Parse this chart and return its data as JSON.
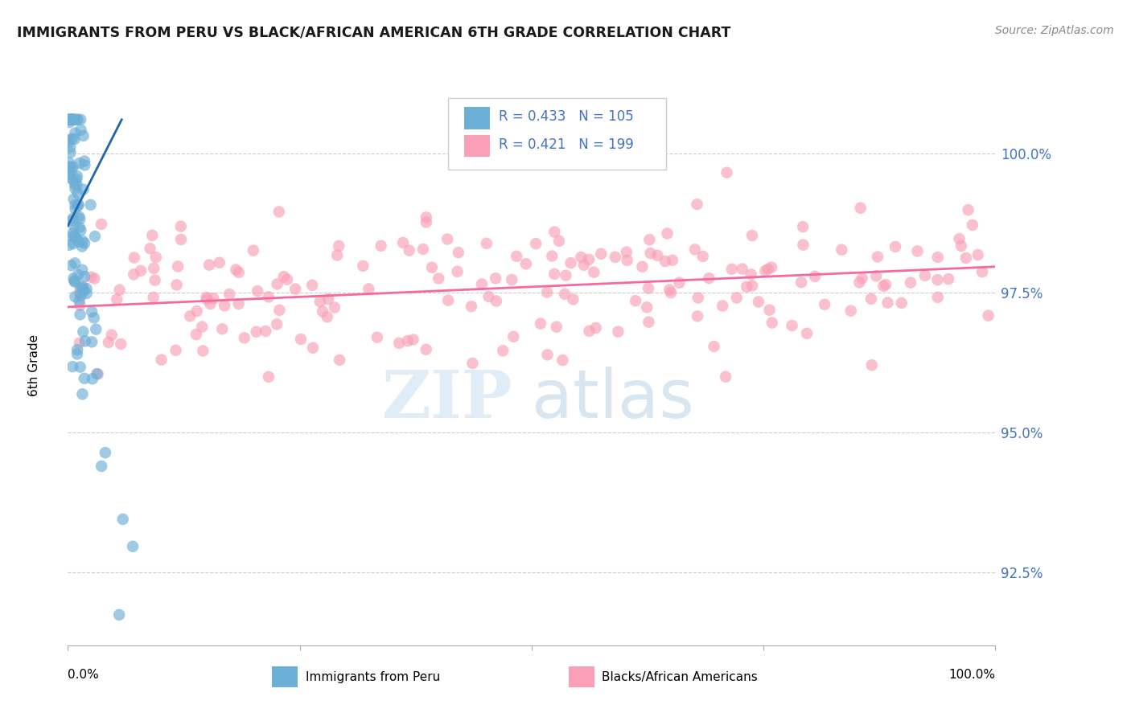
{
  "title": "IMMIGRANTS FROM PERU VS BLACK/AFRICAN AMERICAN 6TH GRADE CORRELATION CHART",
  "source": "Source: ZipAtlas.com",
  "ylabel_label": "6th Grade",
  "y_tick_values": [
    92.5,
    95.0,
    97.5,
    100.0
  ],
  "x_lim": [
    0.0,
    100.0
  ],
  "y_lim": [
    91.2,
    101.2
  ],
  "legend_blue_r": "R = 0.433",
  "legend_blue_n": "N = 105",
  "legend_pink_r": "R = 0.421",
  "legend_pink_n": "N = 199",
  "legend_label_blue": "Immigrants from Peru",
  "legend_label_pink": "Blacks/African Americans",
  "blue_color": "#6baed6",
  "pink_color": "#fa9fb5",
  "blue_line_color": "#2166ac",
  "pink_line_color": "#f768a1",
  "title_color": "#1a1a1a",
  "source_color": "#888888",
  "tick_color": "#4472c4",
  "grid_color": "#cccccc",
  "watermark_zip_color": "#c8dff0",
  "watermark_atlas_color": "#aac8e0"
}
